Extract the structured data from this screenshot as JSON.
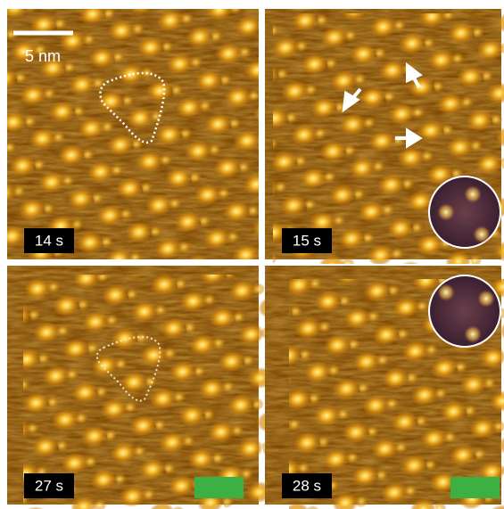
{
  "scale_bar": {
    "label": "5 nm"
  },
  "panels": [
    {
      "time": "14 s"
    },
    {
      "time": "15 s"
    },
    {
      "time": "27 s"
    },
    {
      "time": "28 s"
    }
  ]
}
